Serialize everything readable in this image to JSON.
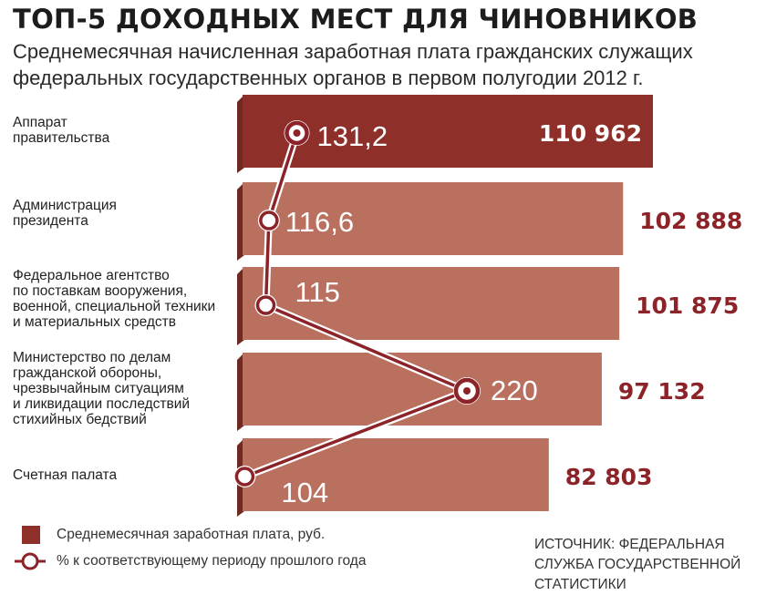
{
  "title": "ТОП-5 ДОХОДНЫХ МЕСТ ДЛЯ ЧИНОВНИКОВ",
  "subtitle": "Среднемесячная начисленная заработная плата гражданских служащих федеральных государственных органов в первом полугодии 2012 г.",
  "legend": {
    "bar_label": "Среднемесячная заработная плата, руб.",
    "line_label": "% к соответствующему периоду прошлого года"
  },
  "source": "ИСТОЧНИК: ФЕДЕРАЛЬНАЯ СЛУЖБА ГОСУДАРСТВЕННОЙ СТАТИСТИКИ",
  "colors": {
    "top_bar": "#8f2f2a",
    "bar": "#b9705f",
    "bar_side": "#6e2a22",
    "value_text": "#8b2329",
    "line": "#8b2329"
  },
  "chart_data": {
    "type": "bar",
    "orientation": "horizontal",
    "categories": [
      "Аппарат\nправительства",
      "Администрация\nпрезидента",
      "Федеральное агентство\nпо поставкам вооружения,\nвоенной, специальной техники\nи материальных средств",
      "Министерство по делам\nгражданской обороны,\nчрезвычайным ситуациям\nи ликвидации последствий\nстихийных бедствий",
      "Счетная палата"
    ],
    "series": [
      {
        "name": "Среднемесячная заработная плата, руб.",
        "values": [
          110962,
          102888,
          101875,
          97132,
          82803
        ],
        "labels": [
          "110 962",
          "102 888",
          "101 875",
          "97 132",
          "82 803"
        ]
      },
      {
        "name": "% к соответствующему периоду прошлого года",
        "type": "line",
        "values": [
          131.2,
          116.6,
          115,
          220,
          104
        ],
        "labels": [
          "131,2",
          "116,6",
          "115",
          "220",
          "104"
        ]
      }
    ]
  }
}
